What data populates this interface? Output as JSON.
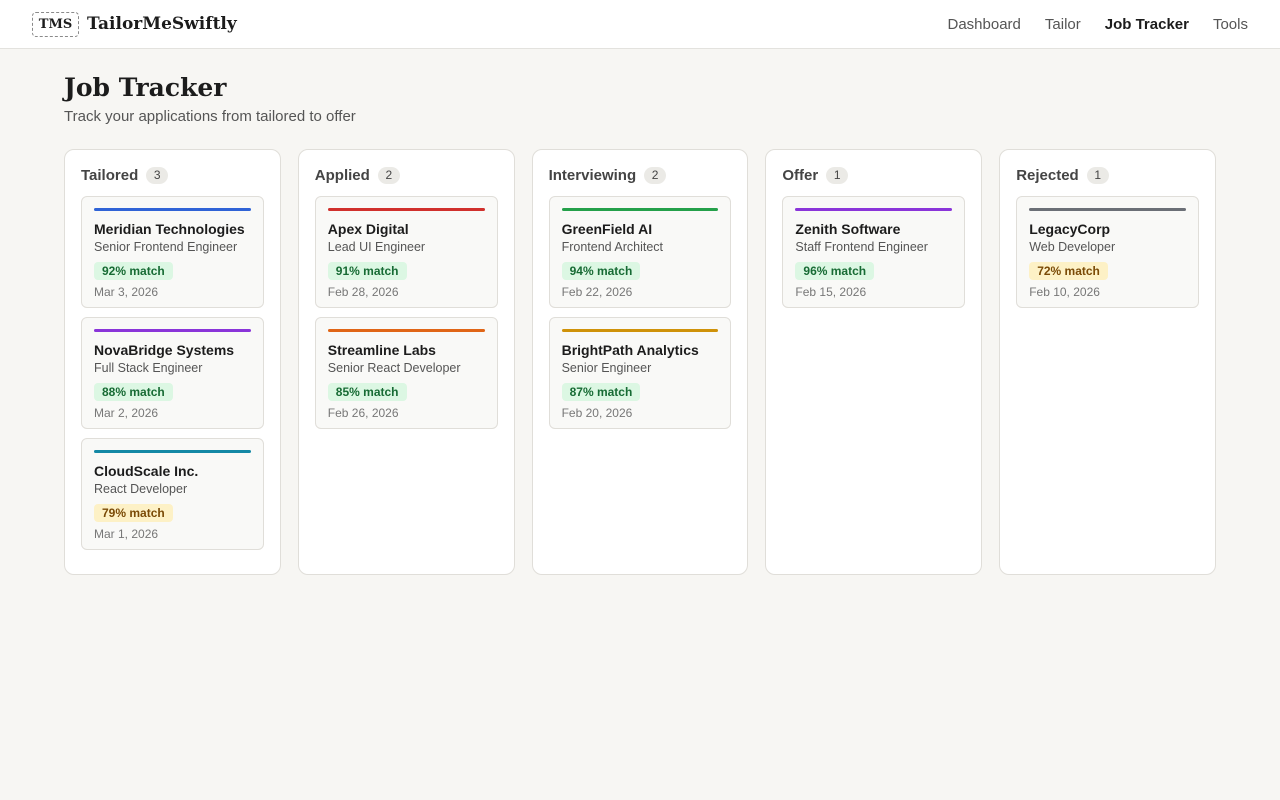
{
  "brand": {
    "logo": "TMS",
    "name": "TailorMeSwiftly"
  },
  "nav": [
    {
      "label": "Dashboard",
      "active": false
    },
    {
      "label": "Tailor",
      "active": false
    },
    {
      "label": "Job Tracker",
      "active": true
    },
    {
      "label": "Tools",
      "active": false
    }
  ],
  "page": {
    "title": "Job Tracker",
    "subtitle": "Track your applications from tailored to offer"
  },
  "colors": {
    "blue": "#2f63d6",
    "purple": "#8a35d9",
    "teal": "#1488a5",
    "red": "#d0302c",
    "orange": "#e06516",
    "green": "#24a04a",
    "gold": "#cf9209",
    "gray": "#6b6f76"
  },
  "columns": [
    {
      "title": "Tailored",
      "count": "3",
      "cards": [
        {
          "company": "Meridian Technologies",
          "role": "Senior Frontend Engineer",
          "match": "92% match",
          "level": "good",
          "date": "Mar 3, 2026",
          "color": "#2f63d6"
        },
        {
          "company": "NovaBridge Systems",
          "role": "Full Stack Engineer",
          "match": "88% match",
          "level": "good",
          "date": "Mar 2, 2026",
          "color": "#8a35d9"
        },
        {
          "company": "CloudScale Inc.",
          "role": "React Developer",
          "match": "79% match",
          "level": "mid",
          "date": "Mar 1, 2026",
          "color": "#1488a5"
        }
      ]
    },
    {
      "title": "Applied",
      "count": "2",
      "cards": [
        {
          "company": "Apex Digital",
          "role": "Lead UI Engineer",
          "match": "91% match",
          "level": "good",
          "date": "Feb 28, 2026",
          "color": "#d0302c"
        },
        {
          "company": "Streamline Labs",
          "role": "Senior React Developer",
          "match": "85% match",
          "level": "good",
          "date": "Feb 26, 2026",
          "color": "#e06516"
        }
      ]
    },
    {
      "title": "Interviewing",
      "count": "2",
      "cards": [
        {
          "company": "GreenField AI",
          "role": "Frontend Architect",
          "match": "94% match",
          "level": "good",
          "date": "Feb 22, 2026",
          "color": "#24a04a"
        },
        {
          "company": "BrightPath Analytics",
          "role": "Senior Engineer",
          "match": "87% match",
          "level": "good",
          "date": "Feb 20, 2026",
          "color": "#cf9209"
        }
      ]
    },
    {
      "title": "Offer",
      "count": "1",
      "cards": [
        {
          "company": "Zenith Software",
          "role": "Staff Frontend Engineer",
          "match": "96% match",
          "level": "good",
          "date": "Feb 15, 2026",
          "color": "#8a35d9"
        }
      ]
    },
    {
      "title": "Rejected",
      "count": "1",
      "cards": [
        {
          "company": "LegacyCorp",
          "role": "Web Developer",
          "match": "72% match",
          "level": "mid",
          "date": "Feb 10, 2026",
          "color": "#6b6f76"
        }
      ]
    }
  ]
}
